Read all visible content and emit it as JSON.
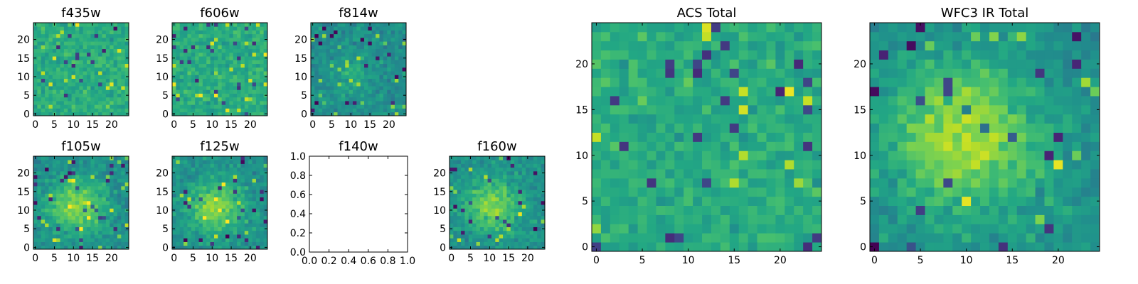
{
  "chart_data": [
    {
      "type": "heatmap",
      "title": "f435w",
      "xticks": [
        "0",
        "5",
        "10",
        "15",
        "20"
      ],
      "yticks": [
        "0",
        "5",
        "10",
        "15",
        "20"
      ],
      "xlim": [
        0,
        25
      ],
      "ylim": [
        0,
        25
      ],
      "grid_size": 25,
      "colormap": "viridis",
      "pattern": "noise",
      "seed": 11
    },
    {
      "type": "heatmap",
      "title": "f606w",
      "xticks": [
        "0",
        "5",
        "10",
        "15",
        "20"
      ],
      "yticks": [
        "0",
        "5",
        "10",
        "15",
        "20"
      ],
      "xlim": [
        0,
        25
      ],
      "ylim": [
        0,
        25
      ],
      "grid_size": 25,
      "colormap": "viridis",
      "pattern": "noise",
      "seed": 23
    },
    {
      "type": "heatmap",
      "title": "f814w",
      "xticks": [
        "0",
        "5",
        "10",
        "15",
        "20"
      ],
      "yticks": [
        "0",
        "5",
        "10",
        "15",
        "20"
      ],
      "xlim": [
        0,
        25
      ],
      "ylim": [
        0,
        25
      ],
      "grid_size": 25,
      "colormap": "viridis",
      "pattern": "noise_faint_source",
      "seed": 37
    },
    {
      "type": "heatmap",
      "title": "f105w",
      "xticks": [
        "0",
        "5",
        "10",
        "15",
        "20"
      ],
      "yticks": [
        "0",
        "5",
        "10",
        "15",
        "20"
      ],
      "xlim": [
        0,
        25
      ],
      "ylim": [
        0,
        25
      ],
      "grid_size": 25,
      "colormap": "viridis",
      "pattern": "source",
      "seed": 41
    },
    {
      "type": "heatmap",
      "title": "f125w",
      "xticks": [
        "0",
        "5",
        "10",
        "15",
        "20"
      ],
      "yticks": [
        "0",
        "5",
        "10",
        "15",
        "20"
      ],
      "xlim": [
        0,
        25
      ],
      "ylim": [
        0,
        25
      ],
      "grid_size": 25,
      "colormap": "viridis",
      "pattern": "source",
      "seed": 53
    },
    {
      "type": "empty",
      "title": "f140w",
      "xticks": [
        "0.0",
        "0.2",
        "0.4",
        "0.6",
        "0.8",
        "1.0"
      ],
      "yticks": [
        "0.0",
        "0.2",
        "0.4",
        "0.6",
        "0.8",
        "1.0"
      ],
      "xlim": [
        0,
        1
      ],
      "ylim": [
        0,
        1
      ]
    },
    {
      "type": "heatmap",
      "title": "f160w",
      "xticks": [
        "0",
        "5",
        "10",
        "15",
        "20"
      ],
      "yticks": [
        "0",
        "5",
        "10",
        "15",
        "20"
      ],
      "xlim": [
        0,
        25
      ],
      "ylim": [
        0,
        25
      ],
      "grid_size": 25,
      "colormap": "viridis",
      "pattern": "source",
      "seed": 67
    },
    {
      "type": "heatmap",
      "title": "ACS Total",
      "xticks": [
        "0",
        "5",
        "10",
        "15",
        "20"
      ],
      "yticks": [
        "0",
        "5",
        "10",
        "15",
        "20"
      ],
      "xlim": [
        0,
        25
      ],
      "ylim": [
        0,
        25
      ],
      "grid_size": 25,
      "colormap": "viridis",
      "pattern": "noise",
      "seed": 79
    },
    {
      "type": "heatmap",
      "title": "WFC3 IR Total",
      "xticks": [
        "0",
        "5",
        "10",
        "15",
        "20"
      ],
      "yticks": [
        "0",
        "5",
        "10",
        "15",
        "20"
      ],
      "xlim": [
        0,
        25
      ],
      "ylim": [
        0,
        25
      ],
      "grid_size": 25,
      "colormap": "viridis",
      "pattern": "source_strong",
      "seed": 97
    }
  ]
}
